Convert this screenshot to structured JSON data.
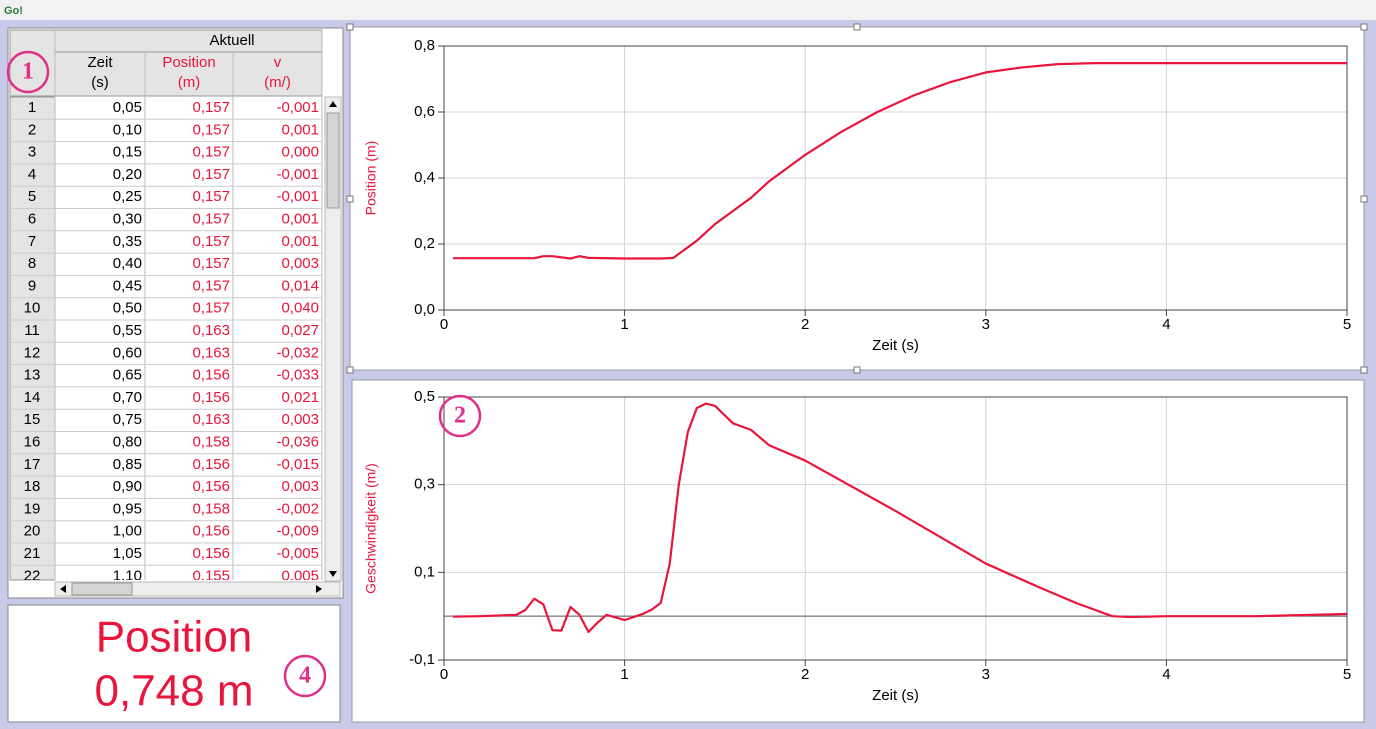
{
  "app": {
    "title": "Go!"
  },
  "table": {
    "group": "Aktuell",
    "columns": [
      {
        "name": "Zeit",
        "unit": "(s)"
      },
      {
        "name": "Position",
        "unit": "(m)"
      },
      {
        "name": "v",
        "unit": "(m/)"
      }
    ],
    "rows": [
      [
        "1",
        "0,05",
        "0,157",
        "-0,001"
      ],
      [
        "2",
        "0,10",
        "0,157",
        "0,001"
      ],
      [
        "3",
        "0,15",
        "0,157",
        "0,000"
      ],
      [
        "4",
        "0,20",
        "0,157",
        "-0,001"
      ],
      [
        "5",
        "0,25",
        "0,157",
        "-0,001"
      ],
      [
        "6",
        "0,30",
        "0,157",
        "0,001"
      ],
      [
        "7",
        "0,35",
        "0,157",
        "0,001"
      ],
      [
        "8",
        "0,40",
        "0,157",
        "0,003"
      ],
      [
        "9",
        "0,45",
        "0,157",
        "0,014"
      ],
      [
        "10",
        "0,50",
        "0,157",
        "0,040"
      ],
      [
        "11",
        "0,55",
        "0,163",
        "0,027"
      ],
      [
        "12",
        "0,60",
        "0,163",
        "-0,032"
      ],
      [
        "13",
        "0,65",
        "0,156",
        "-0,033"
      ],
      [
        "14",
        "0,70",
        "0,156",
        "0,021"
      ],
      [
        "15",
        "0,75",
        "0,163",
        "0,003"
      ],
      [
        "16",
        "0,80",
        "0,158",
        "-0,036"
      ],
      [
        "17",
        "0,85",
        "0,156",
        "-0,015"
      ],
      [
        "18",
        "0,90",
        "0,156",
        "0,003"
      ],
      [
        "19",
        "0,95",
        "0,158",
        "-0,002"
      ],
      [
        "20",
        "1,00",
        "0,156",
        "-0,009"
      ],
      [
        "21",
        "1,05",
        "0,156",
        "-0,005"
      ],
      [
        "22",
        "1,10",
        "0,155",
        "0,005"
      ]
    ]
  },
  "display": {
    "label": "Position",
    "value": "0,748 m"
  },
  "badges": [
    "1",
    "2",
    "4"
  ],
  "chart_data": [
    {
      "type": "line",
      "xlabel": "Zeit (s)",
      "ylabel": "Position (m)",
      "grid": true,
      "x": [
        0.05,
        0.5,
        0.55,
        0.6,
        0.7,
        0.75,
        0.8,
        1.0,
        1.2,
        1.27,
        1.3,
        1.4,
        1.5,
        1.6,
        1.7,
        1.8,
        1.9,
        2.0,
        2.2,
        2.4,
        2.6,
        2.8,
        3.0,
        3.2,
        3.4,
        3.6,
        4.0,
        4.5,
        5.0
      ],
      "series": [
        {
          "color": "#e8163c",
          "values": [
            0.157,
            0.157,
            0.163,
            0.163,
            0.156,
            0.163,
            0.158,
            0.156,
            0.156,
            0.158,
            0.17,
            0.21,
            0.26,
            0.3,
            0.34,
            0.39,
            0.43,
            0.47,
            0.54,
            0.6,
            0.65,
            0.69,
            0.72,
            0.735,
            0.745,
            0.748,
            0.748,
            0.748,
            0.748
          ]
        }
      ],
      "xlim": [
        0,
        5
      ],
      "xticks": [
        0,
        1,
        2,
        3,
        4,
        5
      ],
      "ylim": [
        0,
        0.8
      ],
      "yticks": [
        {
          "value": 0,
          "label": "0,0"
        },
        {
          "value": 0.2,
          "label": "0,2"
        },
        {
          "value": 0.4,
          "label": "0,4"
        },
        {
          "value": 0.6,
          "label": "0,6"
        },
        {
          "value": 0.8,
          "label": "0,8"
        }
      ]
    },
    {
      "type": "line",
      "xlabel": "Zeit (s)",
      "ylabel": "Geschwindigkeit (m/)",
      "grid": true,
      "x": [
        0.05,
        0.2,
        0.4,
        0.45,
        0.5,
        0.55,
        0.6,
        0.65,
        0.7,
        0.75,
        0.8,
        0.85,
        0.9,
        1.0,
        1.1,
        1.15,
        1.2,
        1.25,
        1.3,
        1.35,
        1.4,
        1.45,
        1.5,
        1.6,
        1.7,
        1.8,
        2.0,
        2.5,
        3.0,
        3.3,
        3.5,
        3.7,
        3.8,
        4.0,
        4.5,
        5.0
      ],
      "series": [
        {
          "color": "#e8163c",
          "values": [
            -0.001,
            0.0,
            0.003,
            0.014,
            0.04,
            0.027,
            -0.032,
            -0.033,
            0.021,
            0.003,
            -0.036,
            -0.015,
            0.003,
            -0.009,
            0.005,
            0.015,
            0.03,
            0.12,
            0.3,
            0.42,
            0.475,
            0.485,
            0.48,
            0.44,
            0.425,
            0.39,
            0.355,
            0.24,
            0.12,
            0.065,
            0.03,
            0.0,
            -0.002,
            0.0,
            0.0,
            0.005
          ]
        }
      ],
      "xlim": [
        0,
        5
      ],
      "xticks": [
        0,
        1,
        2,
        3,
        4,
        5
      ],
      "ylim": [
        -0.1,
        0.5
      ],
      "yticks": [
        {
          "value": -0.1,
          "label": "-0,1"
        },
        {
          "value": 0.1,
          "label": "0,1"
        },
        {
          "value": 0.3,
          "label": "0,3"
        },
        {
          "value": 0.5,
          "label": "0,5"
        }
      ]
    }
  ]
}
